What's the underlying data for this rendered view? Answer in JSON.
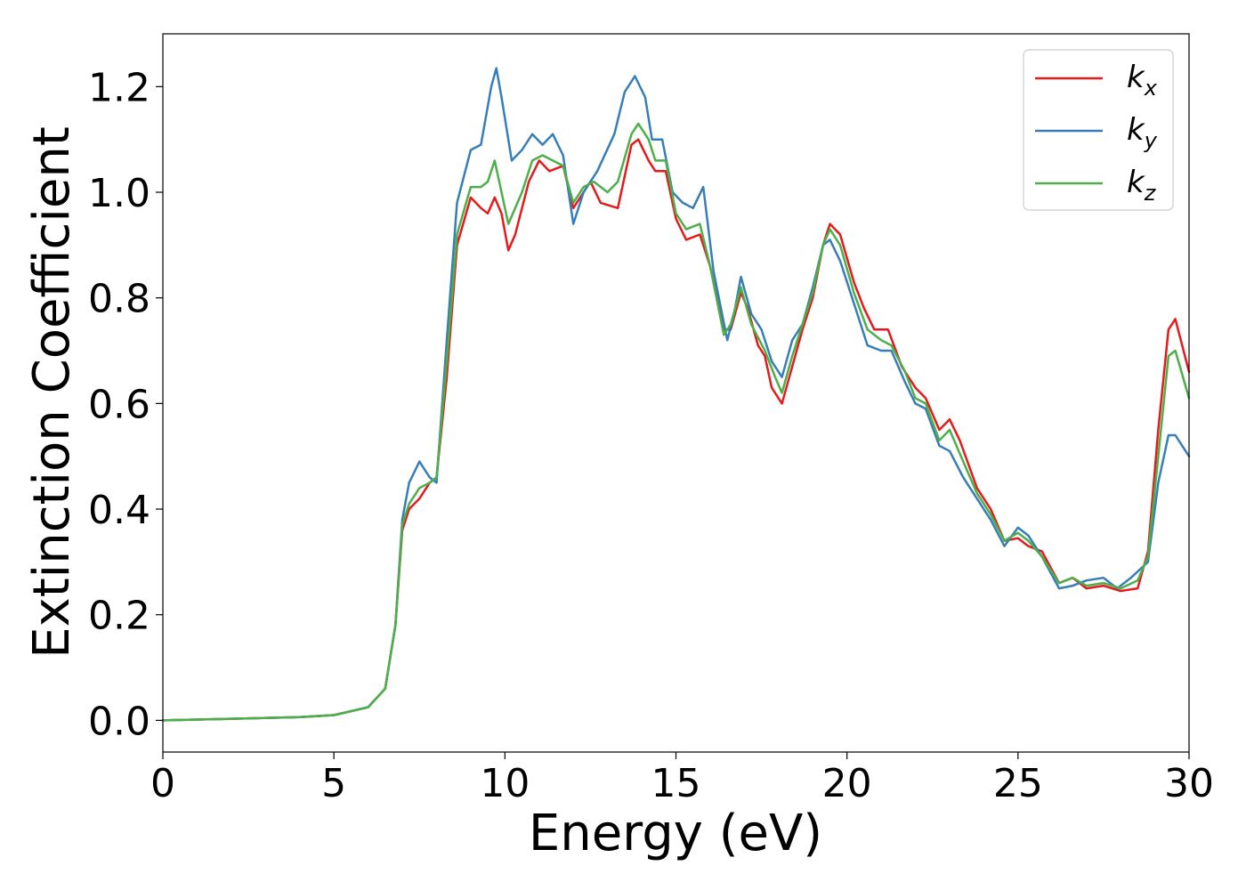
{
  "chart_data": {
    "type": "line",
    "title": "",
    "xlabel": "Energy (eV)",
    "ylabel": "Extinction Coefficient",
    "xlim": [
      0,
      30
    ],
    "ylim": [
      -0.06,
      1.3
    ],
    "xticks": [
      0,
      5,
      10,
      15,
      20,
      25,
      30
    ],
    "xtick_labels": [
      "0",
      "5",
      "10",
      "15",
      "20",
      "25",
      "30"
    ],
    "yticks": [
      0.0,
      0.2,
      0.4,
      0.6,
      0.8,
      1.0,
      1.2
    ],
    "ytick_labels": [
      "0.0",
      "0.2",
      "0.4",
      "0.6",
      "0.8",
      "1.0",
      "1.2"
    ],
    "grid": false,
    "legend_position": "top-right",
    "series": [
      {
        "name": "k_x",
        "label_main": "k",
        "label_sub": "x",
        "color": "#e41a1c",
        "points": [
          [
            0,
            0.0
          ],
          [
            2,
            0.003
          ],
          [
            4,
            0.006
          ],
          [
            5,
            0.01
          ],
          [
            6,
            0.025
          ],
          [
            6.5,
            0.06
          ],
          [
            6.8,
            0.18
          ],
          [
            7.0,
            0.36
          ],
          [
            7.2,
            0.4
          ],
          [
            7.5,
            0.42
          ],
          [
            7.8,
            0.45
          ],
          [
            8.0,
            0.46
          ],
          [
            8.3,
            0.65
          ],
          [
            8.6,
            0.9
          ],
          [
            9.0,
            0.99
          ],
          [
            9.3,
            0.97
          ],
          [
            9.5,
            0.96
          ],
          [
            9.7,
            0.99
          ],
          [
            9.9,
            0.96
          ],
          [
            10.1,
            0.89
          ],
          [
            10.3,
            0.92
          ],
          [
            10.7,
            1.02
          ],
          [
            11.0,
            1.06
          ],
          [
            11.3,
            1.04
          ],
          [
            11.7,
            1.05
          ],
          [
            12.0,
            0.97
          ],
          [
            12.3,
            1.0
          ],
          [
            12.5,
            1.02
          ],
          [
            12.8,
            0.98
          ],
          [
            13.3,
            0.97
          ],
          [
            13.7,
            1.09
          ],
          [
            13.9,
            1.1
          ],
          [
            14.2,
            1.06
          ],
          [
            14.4,
            1.04
          ],
          [
            14.7,
            1.04
          ],
          [
            15.0,
            0.95
          ],
          [
            15.3,
            0.91
          ],
          [
            15.7,
            0.92
          ],
          [
            16.0,
            0.86
          ],
          [
            16.4,
            0.74
          ],
          [
            16.6,
            0.74
          ],
          [
            16.9,
            0.81
          ],
          [
            17.1,
            0.78
          ],
          [
            17.4,
            0.71
          ],
          [
            17.6,
            0.69
          ],
          [
            17.8,
            0.63
          ],
          [
            18.1,
            0.6
          ],
          [
            18.4,
            0.67
          ],
          [
            18.7,
            0.74
          ],
          [
            19.0,
            0.8
          ],
          [
            19.3,
            0.9
          ],
          [
            19.5,
            0.94
          ],
          [
            19.8,
            0.92
          ],
          [
            20.2,
            0.83
          ],
          [
            20.5,
            0.78
          ],
          [
            20.8,
            0.74
          ],
          [
            21.2,
            0.74
          ],
          [
            21.6,
            0.67
          ],
          [
            22.0,
            0.63
          ],
          [
            22.3,
            0.61
          ],
          [
            22.7,
            0.55
          ],
          [
            23.0,
            0.57
          ],
          [
            23.3,
            0.53
          ],
          [
            23.8,
            0.44
          ],
          [
            24.2,
            0.4
          ],
          [
            24.6,
            0.34
          ],
          [
            25.0,
            0.345
          ],
          [
            25.3,
            0.33
          ],
          [
            25.7,
            0.32
          ],
          [
            26.2,
            0.26
          ],
          [
            26.6,
            0.27
          ],
          [
            27.0,
            0.25
          ],
          [
            27.5,
            0.255
          ],
          [
            28.0,
            0.245
          ],
          [
            28.5,
            0.25
          ],
          [
            28.8,
            0.32
          ],
          [
            29.1,
            0.55
          ],
          [
            29.4,
            0.74
          ],
          [
            29.6,
            0.76
          ],
          [
            30.0,
            0.66
          ]
        ]
      },
      {
        "name": "k_y",
        "label_main": "k",
        "label_sub": "y",
        "color": "#377eb8",
        "points": [
          [
            0,
            0.0
          ],
          [
            2,
            0.003
          ],
          [
            4,
            0.006
          ],
          [
            5,
            0.01
          ],
          [
            6,
            0.025
          ],
          [
            6.5,
            0.06
          ],
          [
            6.8,
            0.18
          ],
          [
            7.0,
            0.38
          ],
          [
            7.2,
            0.45
          ],
          [
            7.5,
            0.49
          ],
          [
            7.8,
            0.46
          ],
          [
            8.0,
            0.45
          ],
          [
            8.3,
            0.72
          ],
          [
            8.6,
            0.98
          ],
          [
            9.0,
            1.08
          ],
          [
            9.3,
            1.09
          ],
          [
            9.6,
            1.2
          ],
          [
            9.75,
            1.235
          ],
          [
            9.9,
            1.18
          ],
          [
            10.2,
            1.06
          ],
          [
            10.5,
            1.08
          ],
          [
            10.8,
            1.11
          ],
          [
            11.1,
            1.09
          ],
          [
            11.4,
            1.11
          ],
          [
            11.7,
            1.07
          ],
          [
            12.0,
            0.94
          ],
          [
            12.3,
            1.0
          ],
          [
            12.7,
            1.04
          ],
          [
            13.2,
            1.11
          ],
          [
            13.5,
            1.19
          ],
          [
            13.8,
            1.22
          ],
          [
            14.1,
            1.18
          ],
          [
            14.3,
            1.1
          ],
          [
            14.6,
            1.1
          ],
          [
            14.9,
            1.0
          ],
          [
            15.2,
            0.98
          ],
          [
            15.5,
            0.97
          ],
          [
            15.8,
            1.01
          ],
          [
            16.1,
            0.85
          ],
          [
            16.5,
            0.72
          ],
          [
            16.7,
            0.77
          ],
          [
            16.9,
            0.84
          ],
          [
            17.2,
            0.77
          ],
          [
            17.5,
            0.74
          ],
          [
            17.8,
            0.68
          ],
          [
            18.1,
            0.65
          ],
          [
            18.4,
            0.72
          ],
          [
            18.7,
            0.75
          ],
          [
            19.0,
            0.82
          ],
          [
            19.3,
            0.9
          ],
          [
            19.5,
            0.91
          ],
          [
            19.8,
            0.87
          ],
          [
            20.2,
            0.79
          ],
          [
            20.6,
            0.71
          ],
          [
            21.0,
            0.7
          ],
          [
            21.3,
            0.7
          ],
          [
            21.7,
            0.64
          ],
          [
            22.0,
            0.6
          ],
          [
            22.3,
            0.59
          ],
          [
            22.7,
            0.52
          ],
          [
            23.0,
            0.51
          ],
          [
            23.4,
            0.46
          ],
          [
            23.8,
            0.42
          ],
          [
            24.2,
            0.38
          ],
          [
            24.6,
            0.33
          ],
          [
            25.0,
            0.365
          ],
          [
            25.3,
            0.35
          ],
          [
            25.7,
            0.31
          ],
          [
            26.2,
            0.25
          ],
          [
            26.6,
            0.255
          ],
          [
            27.0,
            0.265
          ],
          [
            27.5,
            0.27
          ],
          [
            27.9,
            0.25
          ],
          [
            28.3,
            0.27
          ],
          [
            28.8,
            0.3
          ],
          [
            29.1,
            0.45
          ],
          [
            29.4,
            0.54
          ],
          [
            29.6,
            0.54
          ],
          [
            30.0,
            0.5
          ]
        ]
      },
      {
        "name": "k_z",
        "label_main": "k",
        "label_sub": "z",
        "color": "#4daf4a",
        "points": [
          [
            0,
            0.0
          ],
          [
            2,
            0.003
          ],
          [
            4,
            0.006
          ],
          [
            5,
            0.01
          ],
          [
            6,
            0.025
          ],
          [
            6.5,
            0.06
          ],
          [
            6.8,
            0.18
          ],
          [
            7.0,
            0.37
          ],
          [
            7.2,
            0.41
          ],
          [
            7.5,
            0.44
          ],
          [
            7.8,
            0.45
          ],
          [
            8.0,
            0.46
          ],
          [
            8.3,
            0.68
          ],
          [
            8.6,
            0.92
          ],
          [
            9.0,
            1.01
          ],
          [
            9.3,
            1.01
          ],
          [
            9.5,
            1.02
          ],
          [
            9.7,
            1.06
          ],
          [
            9.9,
            1.0
          ],
          [
            10.1,
            0.94
          ],
          [
            10.5,
            1.0
          ],
          [
            10.8,
            1.06
          ],
          [
            11.1,
            1.07
          ],
          [
            11.4,
            1.06
          ],
          [
            11.7,
            1.05
          ],
          [
            12.0,
            0.98
          ],
          [
            12.3,
            1.01
          ],
          [
            12.6,
            1.02
          ],
          [
            13.0,
            1.0
          ],
          [
            13.3,
            1.02
          ],
          [
            13.7,
            1.11
          ],
          [
            13.9,
            1.13
          ],
          [
            14.2,
            1.1
          ],
          [
            14.4,
            1.06
          ],
          [
            14.7,
            1.06
          ],
          [
            15.0,
            0.96
          ],
          [
            15.3,
            0.93
          ],
          [
            15.7,
            0.94
          ],
          [
            16.0,
            0.86
          ],
          [
            16.4,
            0.73
          ],
          [
            16.6,
            0.75
          ],
          [
            16.9,
            0.82
          ],
          [
            17.2,
            0.75
          ],
          [
            17.6,
            0.7
          ],
          [
            17.9,
            0.65
          ],
          [
            18.1,
            0.62
          ],
          [
            18.4,
            0.69
          ],
          [
            18.7,
            0.75
          ],
          [
            19.0,
            0.81
          ],
          [
            19.3,
            0.9
          ],
          [
            19.5,
            0.93
          ],
          [
            19.8,
            0.9
          ],
          [
            20.2,
            0.81
          ],
          [
            20.6,
            0.74
          ],
          [
            21.0,
            0.72
          ],
          [
            21.3,
            0.71
          ],
          [
            21.7,
            0.66
          ],
          [
            22.0,
            0.61
          ],
          [
            22.3,
            0.6
          ],
          [
            22.7,
            0.53
          ],
          [
            23.0,
            0.55
          ],
          [
            23.4,
            0.49
          ],
          [
            23.8,
            0.43
          ],
          [
            24.2,
            0.39
          ],
          [
            24.6,
            0.34
          ],
          [
            25.0,
            0.355
          ],
          [
            25.3,
            0.34
          ],
          [
            25.7,
            0.31
          ],
          [
            26.2,
            0.26
          ],
          [
            26.6,
            0.27
          ],
          [
            27.0,
            0.255
          ],
          [
            27.5,
            0.26
          ],
          [
            28.0,
            0.25
          ],
          [
            28.5,
            0.265
          ],
          [
            28.8,
            0.31
          ],
          [
            29.1,
            0.5
          ],
          [
            29.4,
            0.69
          ],
          [
            29.6,
            0.7
          ],
          [
            30.0,
            0.61
          ]
        ]
      }
    ]
  }
}
